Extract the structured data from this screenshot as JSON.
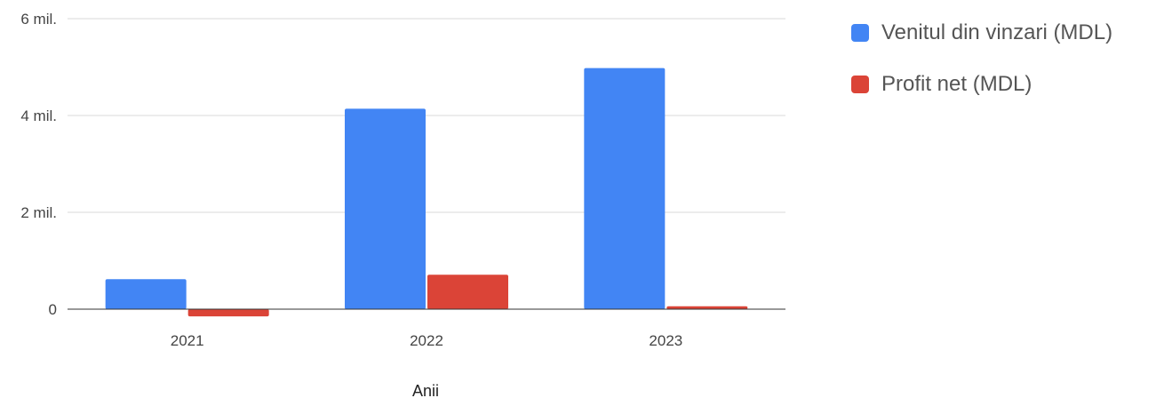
{
  "chart_data": {
    "type": "bar",
    "title": "",
    "xlabel": "Anii",
    "ylabel": "",
    "categories": [
      "2021",
      "2022",
      "2023"
    ],
    "series": [
      {
        "name": "Venitul din vinzari (MDL)",
        "color": "#4285F4",
        "values": [
          620000,
          4140000,
          4980000
        ]
      },
      {
        "name": "Profit net (MDL)",
        "color": "#DB4437",
        "values": [
          -150000,
          710000,
          60000
        ]
      }
    ],
    "ylim": [
      0,
      6000000
    ],
    "yticks": [
      {
        "value": 0,
        "label": "0"
      },
      {
        "value": 2000000,
        "label": "2 mil."
      },
      {
        "value": 4000000,
        "label": "4 mil."
      },
      {
        "value": 6000000,
        "label": "6 mil."
      }
    ],
    "grid": true,
    "legend_position": "right"
  }
}
